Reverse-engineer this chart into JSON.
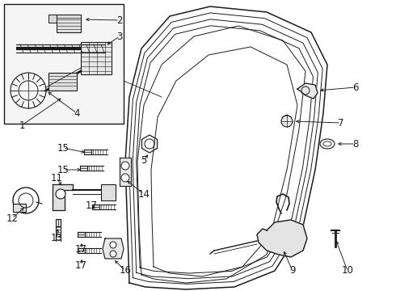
{
  "bg_color": "#ffffff",
  "line_color": "#1a1a1a",
  "fig_width": 4.9,
  "fig_height": 3.6,
  "dpi": 100,
  "font_size": 8.5,
  "bold_font_size": 9.5
}
